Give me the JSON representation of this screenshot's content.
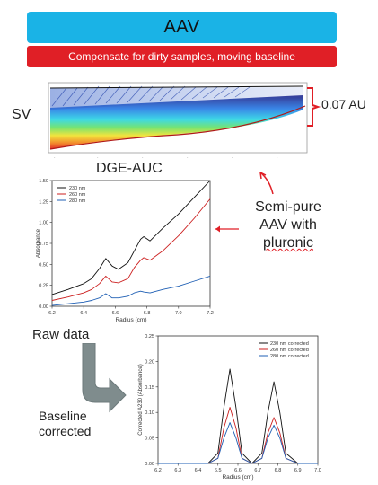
{
  "header": {
    "title": "AAV",
    "subtitle": "Compensate for dirty samples, moving baseline"
  },
  "labels": {
    "sv": "SV",
    "dge_auc": "DGE-AUC",
    "au_scale": "0.07 AU",
    "semi_pure": [
      "Semi-pure",
      "AAV with",
      "pluronic"
    ],
    "raw_data": "Raw data",
    "baseline_corrected": [
      "Baseline",
      "corrected"
    ]
  },
  "colors": {
    "banner_main": "#1ab3e6",
    "banner_sub": "#e01f26",
    "arrow_red": "#e01f26",
    "flow_arrow": "#7f8c8d"
  },
  "icons": [
    "sv-scans-image",
    "bracket-icon",
    "curved-arrow-icon",
    "flow-arrow-icon"
  ],
  "chart_data": [
    {
      "type": "line",
      "xlabel": "Radius (cm)",
      "ylabel": "Absorbance",
      "xlim": [
        6.2,
        7.2
      ],
      "ylim": [
        0.0,
        1.5
      ],
      "xticks": [
        "6.2",
        "6.4",
        "6.6",
        "6.8",
        "7.0",
        "7.2"
      ],
      "yticks": [
        "0.00",
        "0.25",
        "0.50",
        "0.75",
        "1.00",
        "1.25",
        "1.50"
      ],
      "legend_position": "top-left",
      "x": [
        6.2,
        6.3,
        6.4,
        6.45,
        6.5,
        6.54,
        6.58,
        6.62,
        6.68,
        6.72,
        6.76,
        6.78,
        6.82,
        6.9,
        7.0,
        7.1,
        7.2
      ],
      "series": [
        {
          "name": "230 nm",
          "color": "#111111",
          "values": [
            0.14,
            0.2,
            0.27,
            0.33,
            0.45,
            0.57,
            0.48,
            0.44,
            0.52,
            0.66,
            0.8,
            0.83,
            0.78,
            0.93,
            1.1,
            1.3,
            1.5
          ]
        },
        {
          "name": "260 nm",
          "color": "#cc1f1f",
          "values": [
            0.07,
            0.11,
            0.16,
            0.2,
            0.27,
            0.36,
            0.29,
            0.28,
            0.33,
            0.46,
            0.55,
            0.58,
            0.55,
            0.66,
            0.84,
            1.05,
            1.28
          ]
        },
        {
          "name": "280 nm",
          "color": "#1f5fb4",
          "values": [
            0.01,
            0.03,
            0.05,
            0.07,
            0.1,
            0.15,
            0.1,
            0.1,
            0.12,
            0.16,
            0.18,
            0.17,
            0.16,
            0.2,
            0.24,
            0.3,
            0.36
          ]
        }
      ]
    },
    {
      "type": "line",
      "xlabel": "Radius (cm)",
      "ylabel": "Corrected A230 (Absorbance)",
      "xlim": [
        6.2,
        7.0
      ],
      "ylim": [
        0.0,
        0.25
      ],
      "xticks": [
        "6.2",
        "6.3",
        "6.4",
        "6.5",
        "6.6",
        "6.7",
        "6.8",
        "6.9",
        "7.0"
      ],
      "yticks": [
        "0.00",
        "0.05",
        "0.10",
        "0.15",
        "0.20",
        "0.25"
      ],
      "legend_position": "top-right",
      "x": [
        6.2,
        6.45,
        6.5,
        6.53,
        6.56,
        6.59,
        6.62,
        6.67,
        6.72,
        6.75,
        6.78,
        6.81,
        6.84,
        6.9,
        7.0
      ],
      "series": [
        {
          "name": "230 nm corrected",
          "color": "#111111",
          "values": [
            0,
            0,
            0.02,
            0.11,
            0.185,
            0.11,
            0.02,
            0,
            0.02,
            0.1,
            0.16,
            0.1,
            0.02,
            0,
            0
          ]
        },
        {
          "name": "260 nm corrected",
          "color": "#cc1f1f",
          "values": [
            0,
            0,
            0.01,
            0.07,
            0.11,
            0.07,
            0.01,
            0,
            0.01,
            0.06,
            0.09,
            0.06,
            0.01,
            0,
            0
          ]
        },
        {
          "name": "280 nm corrected",
          "color": "#1f5fb4",
          "values": [
            0,
            0,
            0.01,
            0.05,
            0.08,
            0.05,
            0.01,
            0,
            0.01,
            0.05,
            0.075,
            0.05,
            0.01,
            0,
            0
          ]
        }
      ]
    }
  ]
}
